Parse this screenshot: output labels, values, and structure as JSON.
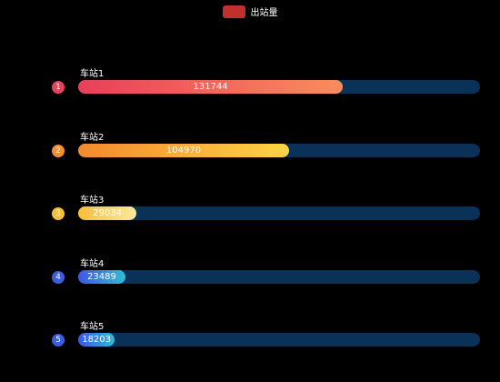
{
  "chart_data": {
    "type": "bar",
    "orientation": "horizontal",
    "legend": {
      "label": "出站量",
      "color": "#c0302c",
      "position": "top-center"
    },
    "xlim": [
      0,
      200000
    ],
    "categories": [
      "车站1",
      "车站2",
      "车站3",
      "车站4",
      "车站5"
    ],
    "ranks": [
      "1",
      "2",
      "3",
      "4",
      "5"
    ],
    "values": [
      131744,
      104970,
      29034,
      23489,
      18203
    ],
    "rank_colors": [
      "#e8435a",
      "#f5902f",
      "#f6bf36",
      "#3a5de0",
      "#3a5de0"
    ],
    "bar_gradients": [
      [
        "#e8405a",
        "#fb8c5b"
      ],
      [
        "#f38a2c",
        "#fed445"
      ],
      [
        "#f6bf36",
        "#fce8a0"
      ],
      [
        "#3d56e8",
        "#2fbcd5"
      ],
      [
        "#3d56e8",
        "#2fbcd5"
      ]
    ],
    "track_color": "#0a3157"
  }
}
